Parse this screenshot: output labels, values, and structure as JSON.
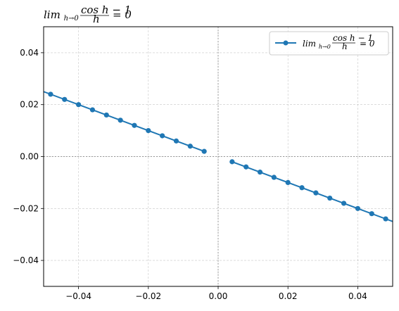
{
  "chart_data": {
    "type": "line",
    "title": {
      "lim": "lim",
      "sub": "h→0",
      "num": "cos h − 1",
      "den": "h",
      "rhs": "= 0"
    },
    "xlabel": "",
    "ylabel": "",
    "xlim": [
      -0.05,
      0.05
    ],
    "ylim": [
      -0.05,
      0.05
    ],
    "xticks": [
      -0.04,
      -0.02,
      0.0,
      0.02,
      0.04
    ],
    "xtick_labels": [
      "−0.04",
      "−0.02",
      "0.00",
      "0.02",
      "0.04"
    ],
    "yticks": [
      -0.04,
      -0.02,
      0.0,
      0.02,
      0.04
    ],
    "ytick_labels": [
      "−0.04",
      "−0.02",
      "0.00",
      "0.02",
      "0.04"
    ],
    "grid": true,
    "legend_position": "top-right",
    "color": "#1f77b4",
    "series": [
      {
        "name": "lim_{h→0} (cos h − 1)/h = 0",
        "segments": [
          {
            "line_x": [
              -0.05,
              -0.004
            ],
            "line_y": [
              0.025,
              0.002
            ],
            "markers_x": [
              -0.048,
              -0.044,
              -0.04,
              -0.036,
              -0.032,
              -0.028,
              -0.024,
              -0.02,
              -0.016,
              -0.012,
              -0.008,
              -0.004
            ],
            "markers_y": [
              0.024,
              0.022,
              0.02,
              0.018,
              0.016,
              0.014,
              0.012,
              0.01,
              0.008,
              0.006,
              0.004,
              0.002
            ]
          },
          {
            "line_x": [
              0.004,
              0.05
            ],
            "line_y": [
              -0.002,
              -0.025
            ],
            "markers_x": [
              0.004,
              0.008,
              0.012,
              0.016,
              0.02,
              0.024,
              0.028,
              0.032,
              0.036,
              0.04,
              0.044,
              0.048
            ],
            "markers_y": [
              -0.002,
              -0.004,
              -0.006,
              -0.008,
              -0.01,
              -0.012,
              -0.014,
              -0.016,
              -0.018,
              -0.02,
              -0.022,
              -0.024
            ]
          }
        ]
      }
    ]
  }
}
